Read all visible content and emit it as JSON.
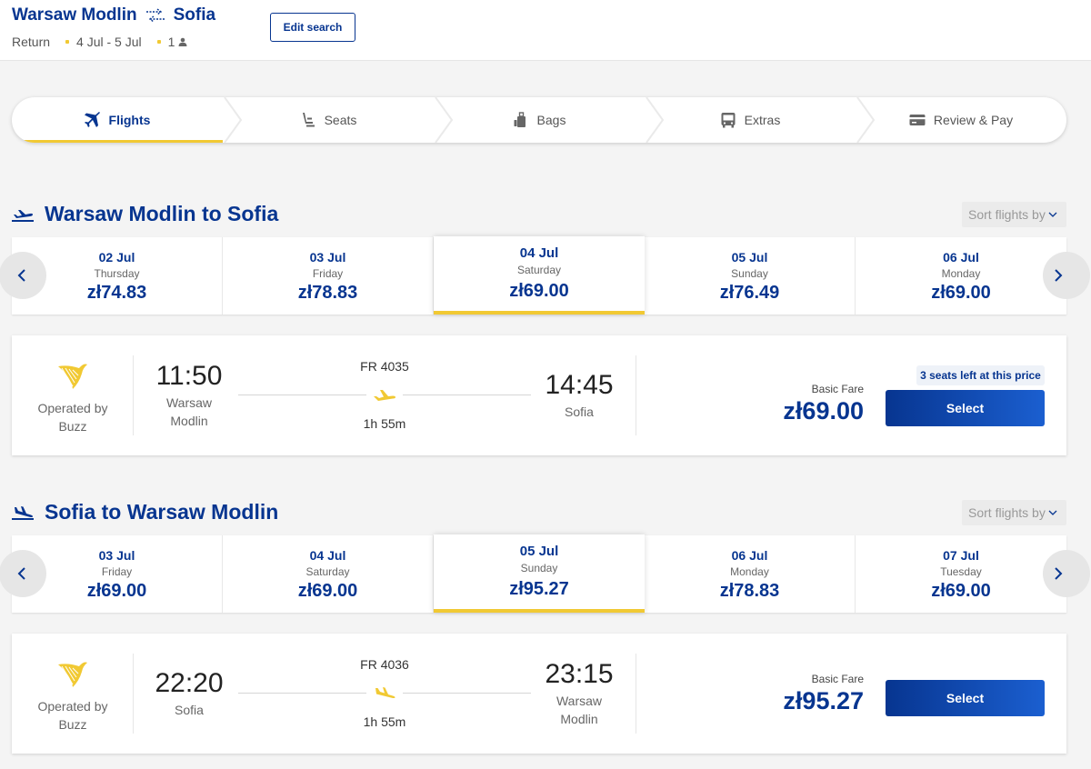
{
  "header": {
    "origin": "Warsaw Modlin",
    "destination": "Sofia",
    "trip_type": "Return",
    "dates": "4 Jul - 5 Jul",
    "passengers": "1",
    "edit_label": "Edit search"
  },
  "steps": [
    {
      "label": "Flights",
      "icon": "plane-icon",
      "active": true
    },
    {
      "label": "Seats",
      "icon": "seat-icon",
      "active": false
    },
    {
      "label": "Bags",
      "icon": "bag-icon",
      "active": false
    },
    {
      "label": "Extras",
      "icon": "bus-icon",
      "active": false
    },
    {
      "label": "Review & Pay",
      "icon": "card-icon",
      "active": false
    }
  ],
  "outbound": {
    "title": "Warsaw Modlin to Sofia",
    "sort_label": "Sort flights by",
    "dates": [
      {
        "date": "02 Jul",
        "weekday": "Thursday",
        "price": "zł74.83"
      },
      {
        "date": "03 Jul",
        "weekday": "Friday",
        "price": "zł78.83"
      },
      {
        "date": "04 Jul",
        "weekday": "Saturday",
        "price": "zł69.00",
        "selected": true
      },
      {
        "date": "05 Jul",
        "weekday": "Sunday",
        "price": "zł76.49"
      },
      {
        "date": "06 Jul",
        "weekday": "Monday",
        "price": "zł69.00"
      }
    ],
    "flight": {
      "operated_by": "Operated by",
      "operator": "Buzz",
      "depart_time": "11:50",
      "depart_city_1": "Warsaw",
      "depart_city_2": "Modlin",
      "flight_number": "FR 4035",
      "duration": "1h 55m",
      "arrive_time": "14:45",
      "arrive_city_1": "Sofia",
      "fare_label": "Basic Fare",
      "price": "zł69.00",
      "seats_left": "3 seats left at this price",
      "select_label": "Select"
    }
  },
  "inbound": {
    "title": "Sofia to Warsaw Modlin",
    "sort_label": "Sort flights by",
    "dates": [
      {
        "date": "03 Jul",
        "weekday": "Friday",
        "price": "zł69.00"
      },
      {
        "date": "04 Jul",
        "weekday": "Saturday",
        "price": "zł69.00"
      },
      {
        "date": "05 Jul",
        "weekday": "Sunday",
        "price": "zł95.27",
        "selected": true
      },
      {
        "date": "06 Jul",
        "weekday": "Monday",
        "price": "zł78.83"
      },
      {
        "date": "07 Jul",
        "weekday": "Tuesday",
        "price": "zł69.00"
      }
    ],
    "flight": {
      "operated_by": "Operated by",
      "operator": "Buzz",
      "depart_time": "22:20",
      "depart_city_1": "Sofia",
      "flight_number": "FR 4036",
      "duration": "1h 55m",
      "arrive_time": "23:15",
      "arrive_city_1": "Warsaw",
      "arrive_city_2": "Modlin",
      "fare_label": "Basic Fare",
      "price": "zł95.27",
      "select_label": "Select"
    }
  },
  "colors": {
    "brand_blue": "#073590",
    "accent_yellow": "#f1c933"
  }
}
